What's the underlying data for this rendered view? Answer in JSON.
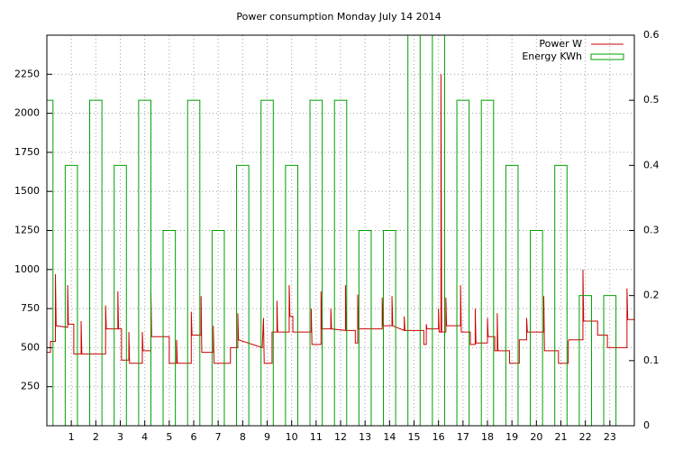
{
  "chart_data": {
    "type": "combo",
    "title": "Power consumption Monday July 14 2014",
    "xlim": [
      0,
      24
    ],
    "xticks": [
      1,
      2,
      3,
      4,
      5,
      6,
      7,
      8,
      9,
      10,
      11,
      12,
      13,
      14,
      15,
      16,
      17,
      18,
      19,
      20,
      21,
      22,
      23
    ],
    "ylim": [
      0,
      2500
    ],
    "yticks": [
      250,
      500,
      750,
      1000,
      1250,
      1500,
      1750,
      2000,
      2250
    ],
    "y2lim": [
      0,
      0.6
    ],
    "y2ticks": [
      0,
      0.1,
      0.2,
      0.3,
      0.4,
      0.5,
      0.6
    ],
    "grid": true,
    "legend": "top-right",
    "series": [
      {
        "name": "Power W",
        "type": "line",
        "color": "#cc0000",
        "x": [
          0,
          0.15,
          0.15,
          0.35,
          0.35,
          0.38,
          0.85,
          0.85,
          0.88,
          1.1,
          1.1,
          1.4,
          1.4,
          1.43,
          2.4,
          2.4,
          2.43,
          2.9,
          2.9,
          2.93,
          3.05,
          3.05,
          3.35,
          3.35,
          3.38,
          3.9,
          3.9,
          3.93,
          4.25,
          4.25,
          4.28,
          5.0,
          5.0,
          5.3,
          5.3,
          5.33,
          5.9,
          5.9,
          5.93,
          6.3,
          6.3,
          6.33,
          6.8,
          6.8,
          6.83,
          7.5,
          7.5,
          7.8,
          7.8,
          7.83,
          8.8,
          8.85,
          8.88,
          9.2,
          9.2,
          9.4,
          9.4,
          9.43,
          9.9,
          9.9,
          9.93,
          10.05,
          10.05,
          10.8,
          10.8,
          10.83,
          11.2,
          11.2,
          11.23,
          11.6,
          11.6,
          11.63,
          12.2,
          12.2,
          12.23,
          12.6,
          12.6,
          12.7,
          12.7,
          12.73,
          13.7,
          13.7,
          13.73,
          14.1,
          14.1,
          14.13,
          14.6,
          14.6,
          14.63,
          15.4,
          15.4,
          15.5,
          15.5,
          15.53,
          16.0,
          16.0,
          16.03,
          16.1,
          16.1,
          16.13,
          16.3,
          16.3,
          16.33,
          16.9,
          16.9,
          16.93,
          17.3,
          17.3,
          17.5,
          17.5,
          17.53,
          18.0,
          18.0,
          18.03,
          18.3,
          18.3,
          18.4,
          18.4,
          18.43,
          18.9,
          18.9,
          19.3,
          19.3,
          19.6,
          19.6,
          19.63,
          20.3,
          20.3,
          20.33,
          20.9,
          20.9,
          21.3,
          21.3,
          21.33,
          21.9,
          21.9,
          21.93,
          22.5,
          22.5,
          22.9,
          22.9,
          23.7,
          23.7,
          23.73,
          24
        ],
        "values": [
          470,
          470,
          540,
          540,
          970,
          640,
          630,
          900,
          650,
          650,
          460,
          460,
          670,
          460,
          460,
          770,
          620,
          620,
          860,
          620,
          620,
          420,
          420,
          600,
          400,
          400,
          600,
          480,
          480,
          860,
          570,
          570,
          400,
          400,
          550,
          400,
          400,
          730,
          580,
          580,
          830,
          470,
          470,
          640,
          400,
          400,
          500,
          500,
          720,
          550,
          500,
          690,
          400,
          400,
          600,
          600,
          800,
          600,
          600,
          900,
          700,
          700,
          600,
          600,
          750,
          520,
          520,
          860,
          620,
          620,
          750,
          620,
          610,
          900,
          610,
          610,
          530,
          530,
          840,
          620,
          620,
          820,
          640,
          640,
          830,
          640,
          610,
          700,
          610,
          610,
          520,
          520,
          650,
          620,
          620,
          750,
          600,
          600,
          2250,
          600,
          600,
          820,
          640,
          640,
          900,
          600,
          600,
          520,
          520,
          750,
          530,
          530,
          690,
          570,
          570,
          480,
          480,
          720,
          480,
          480,
          400,
          400,
          550,
          550,
          690,
          600,
          600,
          830,
          480,
          480,
          400,
          400,
          540,
          550,
          550,
          1000,
          670,
          670,
          580,
          580,
          500,
          500,
          880,
          680,
          680
        ]
      },
      {
        "name": "Energy KWh",
        "type": "bar",
        "axis": "y2",
        "color": "#00a000",
        "x": [
          0,
          1,
          2,
          3,
          4,
          5,
          6,
          7,
          8,
          9,
          10,
          11,
          12,
          13,
          14,
          15,
          16,
          17,
          18,
          19,
          20,
          21,
          22,
          23
        ],
        "values": [
          0.5,
          0.4,
          0.5,
          0.4,
          0.5,
          0.3,
          0.5,
          0.3,
          0.4,
          0.5,
          0.4,
          0.5,
          0.5,
          0.3,
          0.3,
          0.6,
          0.6,
          0.5,
          0.5,
          0.4,
          0.3,
          0.4,
          0.2,
          0.2
        ]
      }
    ]
  }
}
